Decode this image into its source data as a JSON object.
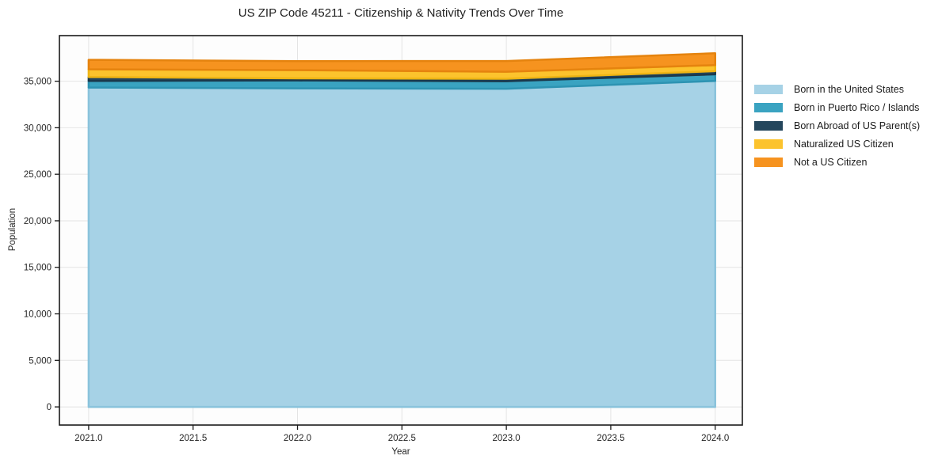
{
  "chart_data": {
    "type": "area",
    "stacked": true,
    "title": "US ZIP Code 45211 - Citizenship & Nativity Trends Over Time",
    "xlabel": "Year",
    "ylabel": "Population",
    "x": [
      2021,
      2022,
      2023,
      2024
    ],
    "series": [
      {
        "name": "Born in the United States",
        "color": "#a6d2e6",
        "edge": "#8ac3dc",
        "values": [
          34320,
          34230,
          34190,
          35030
        ]
      },
      {
        "name": "Born in Puerto Rico / Islands",
        "color": "#3aa3c1",
        "edge": "#2d93b2",
        "values": [
          710,
          850,
          810,
          710
        ]
      },
      {
        "name": "Born Abroad of US Parent(s)",
        "color": "#24465c",
        "edge": "#1b394c",
        "values": [
          420,
          230,
          260,
          340
        ]
      },
      {
        "name": "Naturalized US Citizen",
        "color": "#fcc32d",
        "edge": "#efb514",
        "values": [
          830,
          880,
          760,
          650
        ]
      },
      {
        "name": "Not a US Citizen",
        "color": "#f6931f",
        "edge": "#e5830e",
        "values": [
          1020,
          970,
          1150,
          1280
        ]
      }
    ],
    "xlim": [
      2020.86,
      2024.13
    ],
    "ylim": [
      -1950,
      39900
    ],
    "xticks": {
      "values": [
        2021.0,
        2021.5,
        2022.0,
        2022.5,
        2023.0,
        2023.5,
        2024.0
      ],
      "labels": [
        "2021.0",
        "2021.5",
        "2022.0",
        "2022.5",
        "2023.0",
        "2023.5",
        "2024.0"
      ]
    },
    "yticks": {
      "values": [
        0,
        5000,
        10000,
        15000,
        20000,
        25000,
        30000,
        35000
      ],
      "labels": [
        "0",
        "5,000",
        "10,000",
        "15,000",
        "20,000",
        "25,000",
        "30,000",
        "35,000"
      ]
    },
    "grid": true,
    "grid_color": "#e4e4e4",
    "frame_color": "#1a1a1a",
    "tick_color": "#262626",
    "legend_position": "right"
  }
}
